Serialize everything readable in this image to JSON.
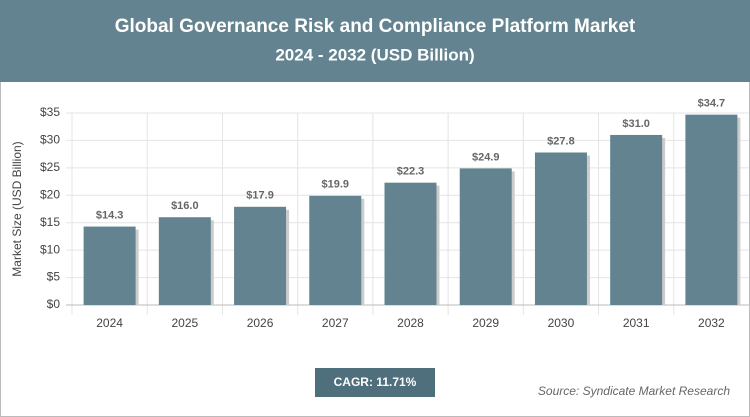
{
  "chart_data": {
    "type": "bar",
    "title": "Global Governance Risk and Compliance Platform Market",
    "subtitle": "2024 - 2032 (USD Billion)",
    "y_label": "Market Size (USD Billion)",
    "categories": [
      "2024",
      "2025",
      "2026",
      "2027",
      "2028",
      "2029",
      "2030",
      "2031",
      "2032"
    ],
    "values": [
      14.3,
      16.0,
      17.9,
      19.9,
      22.3,
      24.9,
      27.8,
      31.0,
      34.7
    ],
    "value_labels": [
      "$14.3",
      "$16.0",
      "$17.9",
      "$19.9",
      "$22.3",
      "$24.9",
      "$27.8",
      "$31.0",
      "$34.7"
    ],
    "color": "#62838f",
    "ylim": [
      0,
      35
    ],
    "yticks": [
      {
        "value": 0,
        "label": "$0"
      },
      {
        "value": 5,
        "label": "$5"
      },
      {
        "value": 10,
        "label": "$10"
      },
      {
        "value": 15,
        "label": "$15"
      },
      {
        "value": 20,
        "label": "$20"
      },
      {
        "value": 25,
        "label": "$25"
      },
      {
        "value": 30,
        "label": "$30"
      },
      {
        "value": 35,
        "label": "$35"
      }
    ],
    "grid": true,
    "cagr": "CAGR: 11.71%",
    "source": "Source: Syndicate Market Research"
  }
}
